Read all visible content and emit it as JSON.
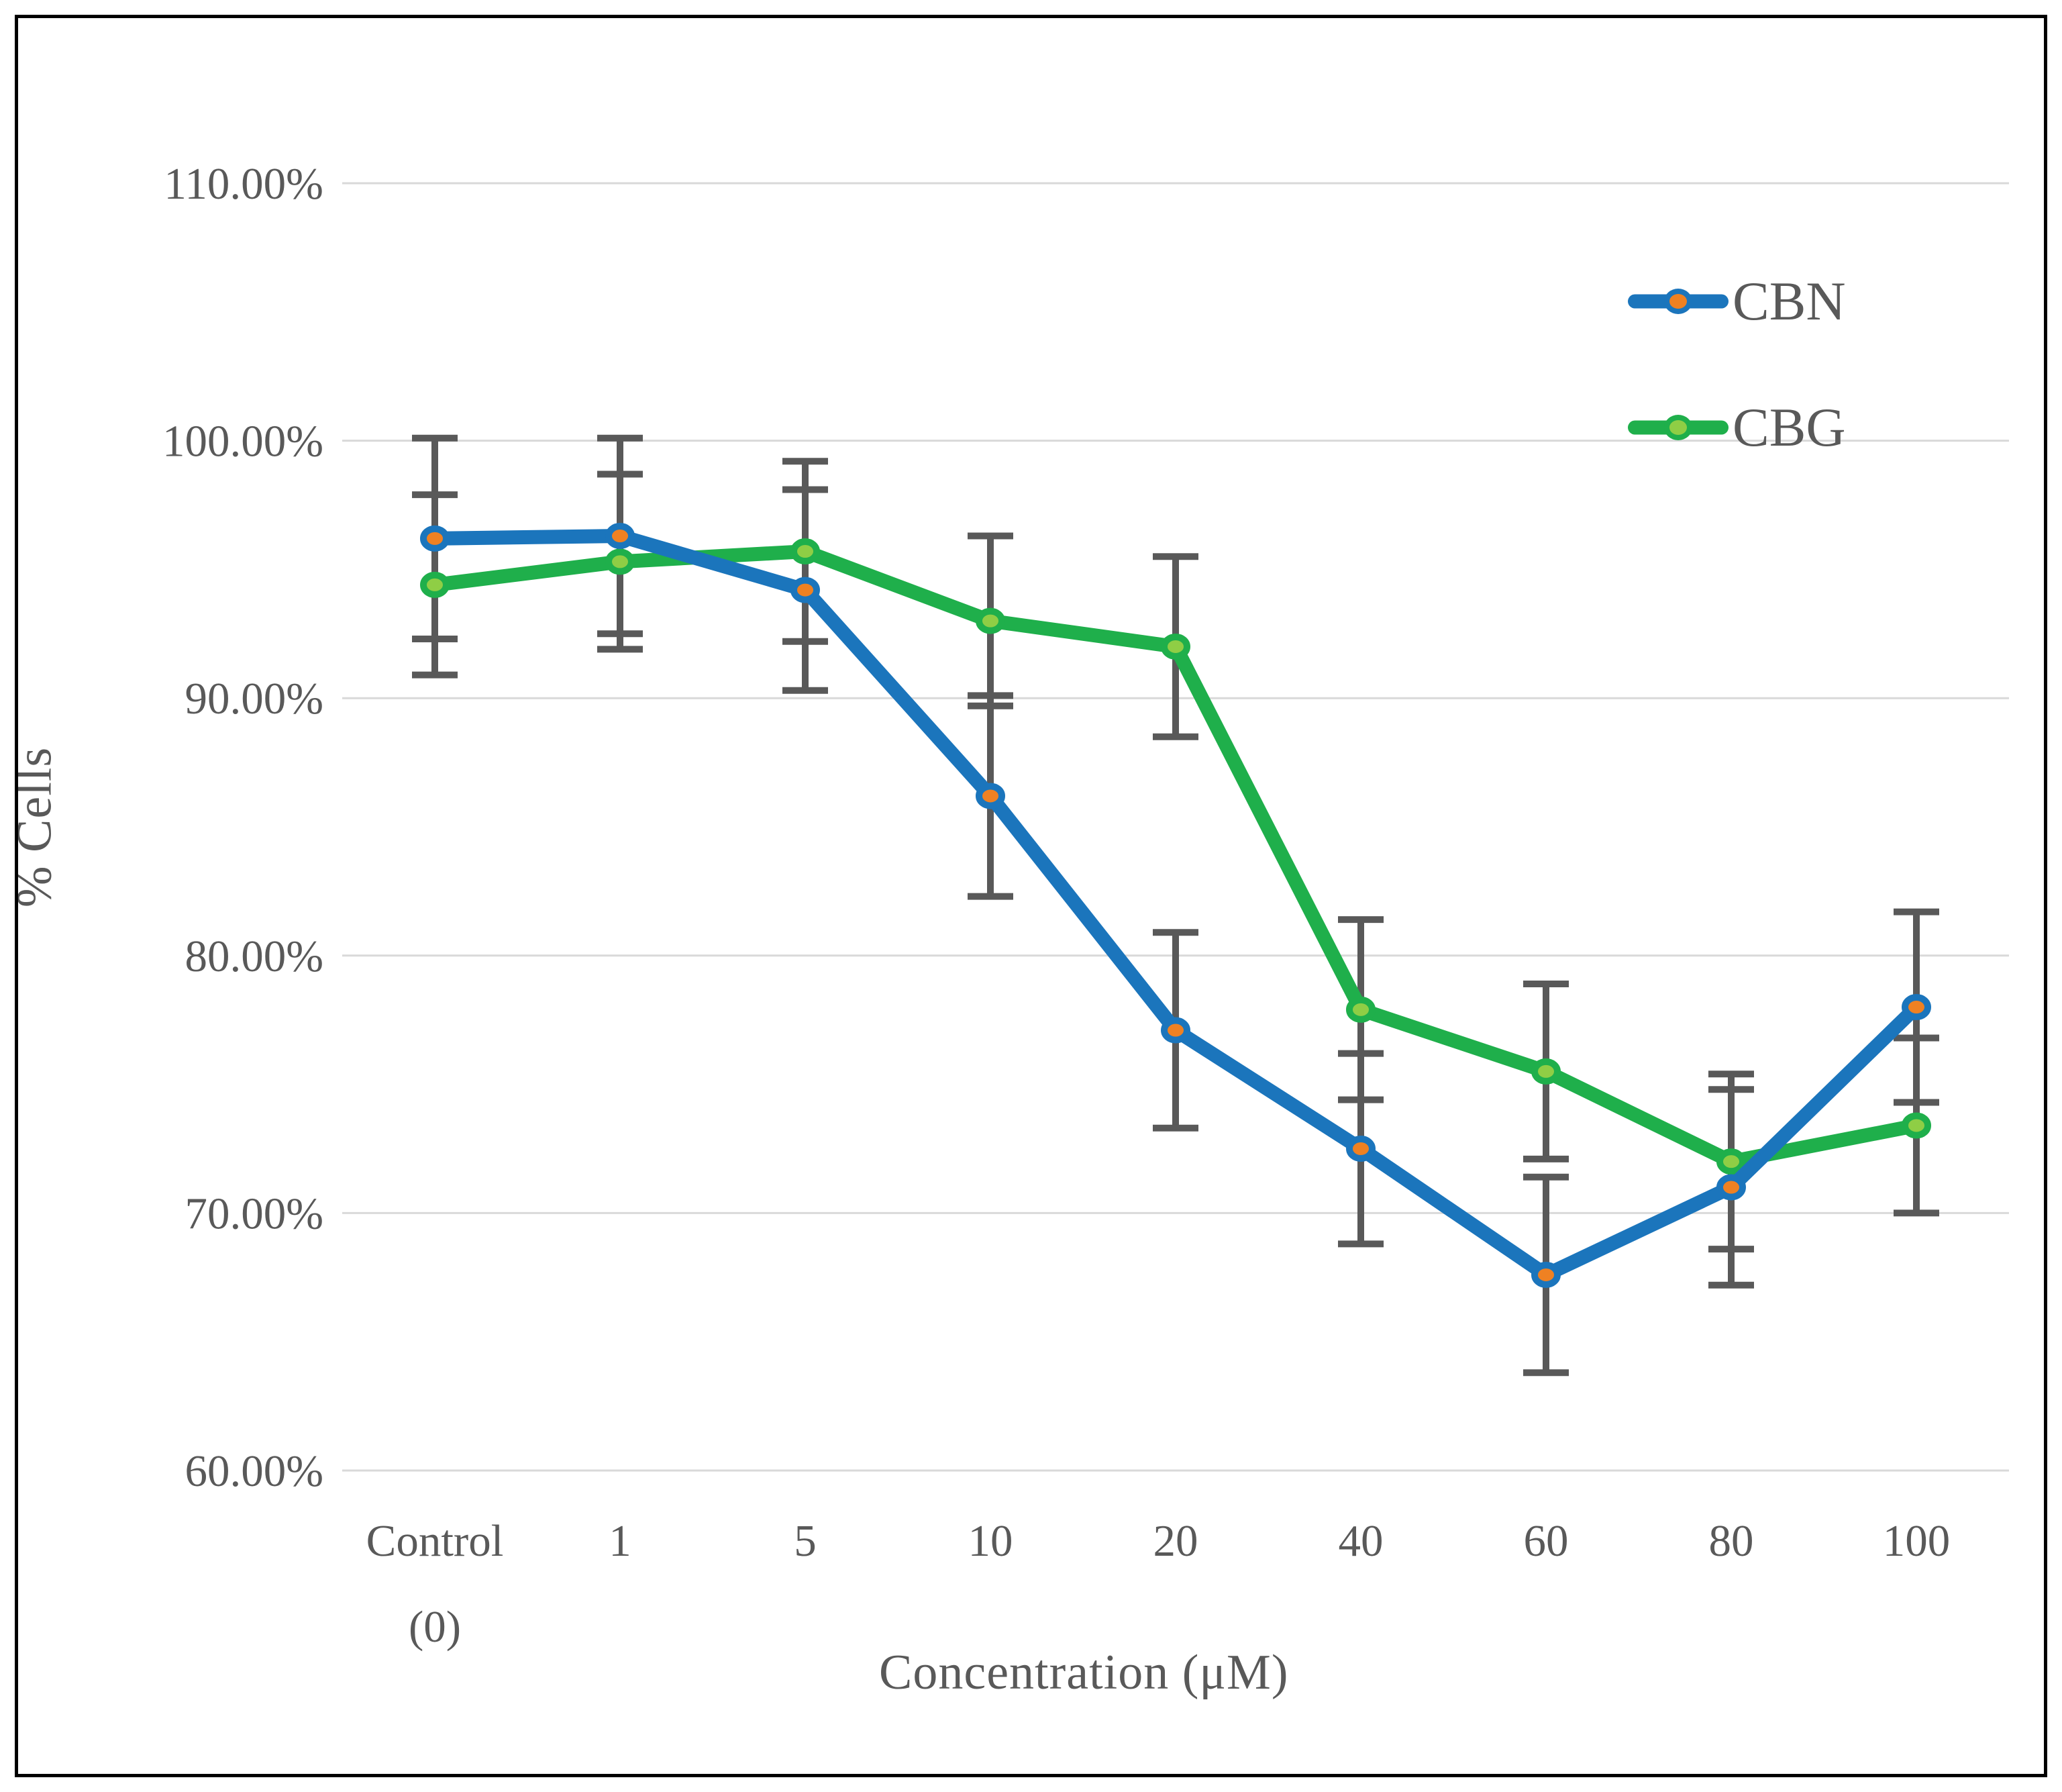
{
  "figure": {
    "background_color": "#FFFFFF",
    "border_color": "#000000"
  },
  "chart_data": {
    "type": "line",
    "title": "",
    "xlabel": "Concentration (μM)",
    "ylabel": "% Cells",
    "x_axis": {
      "label": "Concentration (μM)",
      "categories": [
        "Control (0)",
        "1",
        "5",
        "10",
        "20",
        "40",
        "60",
        "80",
        "100"
      ],
      "category_lines": [
        [
          "Control",
          "(0)"
        ],
        [
          "1"
        ],
        [
          "5"
        ],
        [
          "10"
        ],
        [
          "20"
        ],
        [
          "40"
        ],
        [
          "60"
        ],
        [
          "80"
        ],
        [
          "100"
        ]
      ]
    },
    "y_axis": {
      "label": "% Cells",
      "min": 60,
      "max": 110,
      "tick_step": 10,
      "tick_values": [
        110,
        100,
        90,
        80,
        70,
        60
      ],
      "tick_labels": [
        "110.00%",
        "100.00%",
        "90.00%",
        "80.00%",
        "70.00%",
        "60.00%"
      ]
    },
    "ylim": [
      60,
      110
    ],
    "grid": true,
    "gridline_color": "#D9D9D9",
    "error_bar_color": "#595959",
    "text_color": "#595959",
    "legend_position": "top-right",
    "series": [
      {
        "name": "CBN",
        "line_color": "#1B75BC",
        "marker_fill": "#EF8122",
        "marker_stroke": "#1B75BC",
        "values": [
          96.2,
          96.3,
          94.2,
          86.2,
          77.1,
          72.5,
          67.6,
          71.0,
          78.0
        ],
        "error": [
          3.9,
          3.8,
          3.9,
          3.9,
          3.8,
          3.7,
          3.8,
          3.8,
          3.7
        ]
      },
      {
        "name": "CBG",
        "line_color": "#1FAF4B",
        "marker_fill": "#8FCE45",
        "marker_stroke": "#1FAF4B",
        "values": [
          94.4,
          95.3,
          95.7,
          93.0,
          92.0,
          77.9,
          75.5,
          72.0,
          73.4
        ],
        "error": [
          3.5,
          3.4,
          3.5,
          3.3,
          3.5,
          3.5,
          3.4,
          3.4,
          3.4
        ]
      }
    ]
  }
}
